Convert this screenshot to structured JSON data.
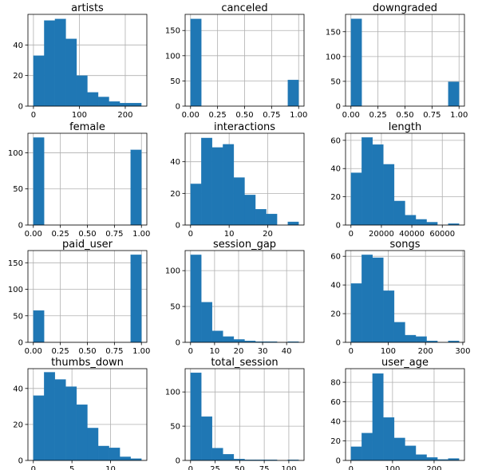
{
  "figure": {
    "title": ""
  },
  "chart_data": [
    {
      "type": "bar",
      "title": "artists",
      "bin_edges": [
        0,
        23.5,
        47,
        70.5,
        94,
        117.5,
        141,
        164.5,
        188,
        211.5,
        235
      ],
      "values": [
        33,
        56,
        57,
        44,
        20,
        9,
        6,
        3,
        2,
        2
      ],
      "xlim": [
        -12,
        247
      ],
      "ylim": [
        0,
        60
      ],
      "xticks": [
        0,
        100,
        200
      ],
      "yticks": [
        0,
        20,
        40
      ],
      "grid": true,
      "color": "#1f77b4"
    },
    {
      "type": "bar",
      "title": "canceled",
      "bin_edges": [
        0,
        0.1,
        0.2,
        0.3,
        0.4,
        0.5,
        0.6,
        0.7,
        0.8,
        0.9,
        1.0
      ],
      "values": [
        173,
        0,
        0,
        0,
        0,
        0,
        0,
        0,
        0,
        52
      ],
      "xlim": [
        -0.05,
        1.05
      ],
      "ylim": [
        0,
        182
      ],
      "xticks": [
        0.0,
        0.25,
        0.5,
        0.75,
        1.0
      ],
      "yticks": [
        0,
        50,
        100,
        150
      ],
      "grid": true,
      "color": "#1f77b4"
    },
    {
      "type": "bar",
      "title": "downgraded",
      "bin_edges": [
        0,
        0.1,
        0.2,
        0.3,
        0.4,
        0.5,
        0.6,
        0.7,
        0.8,
        0.9,
        1.0
      ],
      "values": [
        176,
        0,
        0,
        0,
        0,
        0,
        0,
        0,
        0,
        49
      ],
      "xlim": [
        -0.05,
        1.05
      ],
      "ylim": [
        0,
        185
      ],
      "xticks": [
        0.0,
        0.25,
        0.5,
        0.75,
        1.0
      ],
      "yticks": [
        0,
        50,
        100,
        150
      ],
      "grid": true,
      "color": "#1f77b4"
    },
    {
      "type": "bar",
      "title": "female",
      "bin_edges": [
        0,
        0.1,
        0.2,
        0.3,
        0.4,
        0.5,
        0.6,
        0.7,
        0.8,
        0.9,
        1.0
      ],
      "values": [
        121,
        0,
        0,
        0,
        0,
        0,
        0,
        0,
        0,
        104
      ],
      "xlim": [
        -0.05,
        1.05
      ],
      "ylim": [
        0,
        127
      ],
      "xticks": [
        0.0,
        0.25,
        0.5,
        0.75,
        1.0
      ],
      "yticks": [
        0,
        50,
        100
      ],
      "grid": true,
      "color": "#1f77b4"
    },
    {
      "type": "bar",
      "title": "interactions",
      "bin_edges": [
        0,
        2.8,
        5.6,
        8.4,
        11.2,
        14,
        16.8,
        19.6,
        22.4,
        25.2,
        28
      ],
      "values": [
        26,
        55,
        49,
        51,
        30,
        19,
        10,
        7,
        0,
        2
      ],
      "xlim": [
        -1.4,
        29.4
      ],
      "ylim": [
        0,
        58
      ],
      "xticks": [
        0,
        10,
        20
      ],
      "yticks": [
        0,
        20,
        40
      ],
      "grid": true,
      "color": "#1f77b4"
    },
    {
      "type": "bar",
      "title": "length",
      "bin_edges": [
        0,
        7100,
        14200,
        21300,
        28400,
        35500,
        42600,
        49700,
        56800,
        63900,
        71000
      ],
      "values": [
        37,
        62,
        57,
        43,
        17,
        7,
        4,
        2,
        0,
        1
      ],
      "xlim": [
        -3550,
        74550
      ],
      "ylim": [
        0,
        65
      ],
      "xticks": [
        0,
        20000,
        40000,
        60000
      ],
      "yticks": [
        0,
        20,
        40,
        60
      ],
      "grid": true,
      "color": "#1f77b4"
    },
    {
      "type": "bar",
      "title": "paid_user",
      "bin_edges": [
        0,
        0.1,
        0.2,
        0.3,
        0.4,
        0.5,
        0.6,
        0.7,
        0.8,
        0.9,
        1.0
      ],
      "values": [
        60,
        0,
        0,
        0,
        0,
        0,
        0,
        0,
        0,
        165
      ],
      "xlim": [
        -0.05,
        1.05
      ],
      "ylim": [
        0,
        173
      ],
      "xticks": [
        0.0,
        0.25,
        0.5,
        0.75,
        1.0
      ],
      "yticks": [
        0,
        50,
        100,
        150
      ],
      "grid": true,
      "color": "#1f77b4"
    },
    {
      "type": "bar",
      "title": "session_gap",
      "bin_edges": [
        0,
        4.5,
        9,
        13.5,
        18,
        22.5,
        27,
        31.5,
        36,
        40.5,
        45
      ],
      "values": [
        122,
        56,
        16,
        8,
        4,
        2,
        1,
        1,
        0,
        1
      ],
      "xlim": [
        -2.25,
        47.25
      ],
      "ylim": [
        0,
        128
      ],
      "xticks": [
        0,
        10,
        20,
        30,
        40
      ],
      "yticks": [
        0,
        50,
        100
      ],
      "grid": true,
      "color": "#1f77b4"
    },
    {
      "type": "bar",
      "title": "songs",
      "bin_edges": [
        0,
        29,
        58,
        87,
        116,
        145,
        174,
        203,
        232,
        261,
        290
      ],
      "values": [
        41,
        61,
        59,
        36,
        14,
        5,
        4,
        1,
        0,
        1
      ],
      "xlim": [
        -14.5,
        304.5
      ],
      "ylim": [
        0,
        64
      ],
      "xticks": [
        0,
        100,
        200,
        300
      ],
      "yticks": [
        0,
        20,
        40,
        60
      ],
      "grid": true,
      "color": "#1f77b4"
    },
    {
      "type": "bar",
      "title": "thumbs_down",
      "bin_edges": [
        0,
        1.4,
        2.8,
        4.2,
        5.6,
        7,
        8.4,
        9.8,
        11.2,
        12.6,
        14
      ],
      "values": [
        36,
        49,
        45,
        41,
        31,
        18,
        8,
        7,
        2,
        1
      ],
      "xlim": [
        -0.7,
        14.7
      ],
      "ylim": [
        0,
        51
      ],
      "xticks": [
        0,
        5,
        10
      ],
      "yticks": [
        0,
        20,
        40
      ],
      "grid": true,
      "color": "#1f77b4"
    },
    {
      "type": "bar",
      "title": "total_session",
      "bin_edges": [
        0,
        11,
        22,
        33,
        44,
        55,
        66,
        77,
        88,
        99,
        110
      ],
      "values": [
        128,
        64,
        18,
        9,
        2,
        1,
        1,
        1,
        0,
        1
      ],
      "xlim": [
        -5.5,
        115.5
      ],
      "ylim": [
        0,
        134
      ],
      "xticks": [
        0,
        25,
        50,
        75,
        100
      ],
      "yticks": [
        0,
        50,
        100
      ],
      "grid": true,
      "color": "#1f77b4"
    },
    {
      "type": "bar",
      "title": "user_age",
      "bin_edges": [
        0,
        26,
        52,
        78,
        104,
        130,
        156,
        182,
        208,
        234,
        260
      ],
      "values": [
        14,
        28,
        89,
        44,
        23,
        15,
        6,
        3,
        1,
        2
      ],
      "xlim": [
        -13,
        273
      ],
      "ylim": [
        0,
        94
      ],
      "xticks": [
        0,
        100,
        200
      ],
      "yticks": [
        0,
        20,
        40,
        60,
        80
      ],
      "grid": true,
      "color": "#1f77b4"
    }
  ]
}
